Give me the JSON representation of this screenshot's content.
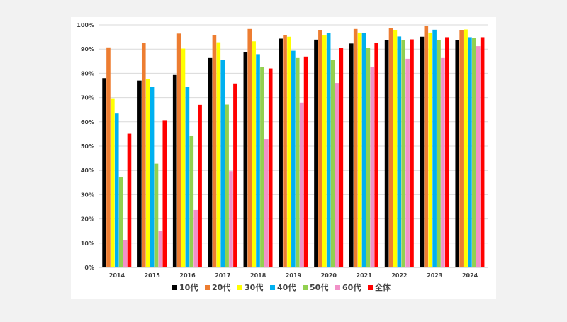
{
  "chart_data": {
    "type": "bar",
    "categories": [
      "2014",
      "2015",
      "2016",
      "2017",
      "2018",
      "2019",
      "2020",
      "2021",
      "2022",
      "2023",
      "2024"
    ],
    "ylim": [
      0,
      100
    ],
    "yticks": [
      "0%",
      "10%",
      "20%",
      "30%",
      "40%",
      "50%",
      "60%",
      "70%",
      "80%",
      "90%",
      "100%"
    ],
    "grid": true,
    "legend_position": "bottom",
    "series": [
      {
        "name": "10代",
        "color": "#000000",
        "values": [
          78,
          77,
          79.3,
          86.3,
          88.8,
          94.3,
          93.9,
          92.3,
          93.6,
          95.1,
          93.6
        ]
      },
      {
        "name": "20代",
        "color": "#ed7d31",
        "values": [
          90.7,
          92.4,
          96.4,
          95.9,
          98.3,
          95.7,
          97.8,
          98.3,
          98.6,
          99.6,
          97.7
        ]
      },
      {
        "name": "30代",
        "color": "#ffff00",
        "values": [
          69.7,
          77.7,
          90.2,
          92.8,
          93.2,
          95.1,
          95.6,
          96.8,
          97.7,
          96.8,
          98.1
        ]
      },
      {
        "name": "40代",
        "color": "#00b0f0",
        "values": [
          63.4,
          74.4,
          74.3,
          85.6,
          87.9,
          89.3,
          96.6,
          96.6,
          95.2,
          98.0,
          94.9
        ]
      },
      {
        "name": "50代",
        "color": "#92d050",
        "values": [
          37.2,
          42.8,
          54.1,
          67.1,
          82.6,
          86.3,
          85.5,
          90.4,
          93.8,
          93.8,
          94.6
        ]
      },
      {
        "name": "60代",
        "color": "#f191c8",
        "values": [
          11.4,
          15.0,
          23.7,
          39.7,
          52.9,
          67.9,
          76.0,
          82.6,
          86.0,
          86.3,
          91.2
        ]
      },
      {
        "name": "全体",
        "color": "#ff0000",
        "values": [
          55.1,
          60.7,
          67.0,
          75.8,
          82.0,
          86.9,
          90.4,
          92.6,
          94.0,
          94.9,
          94.9
        ]
      }
    ]
  }
}
